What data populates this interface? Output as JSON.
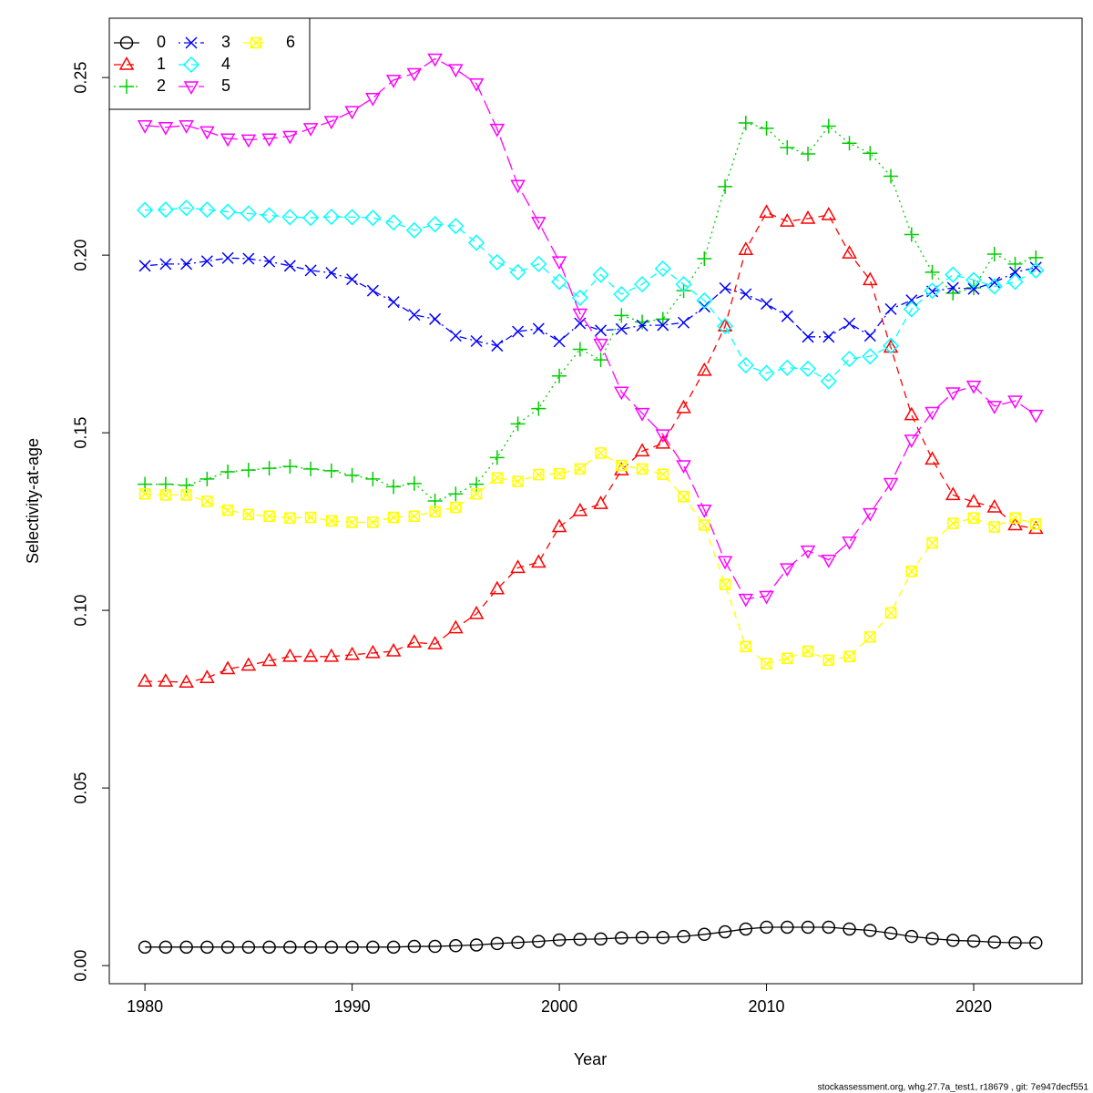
{
  "chart_data": {
    "type": "line",
    "xlabel": "Year",
    "ylabel": "Selectivity-at-age",
    "footer": "stockassessment.org, whg.27.7a_test1, r18679 , git: 7e947decf551",
    "x": [
      1980,
      1981,
      1982,
      1983,
      1984,
      1985,
      1986,
      1987,
      1988,
      1989,
      1990,
      1991,
      1992,
      1993,
      1994,
      1995,
      1996,
      1997,
      1998,
      1999,
      2000,
      2001,
      2002,
      2003,
      2004,
      2005,
      2006,
      2007,
      2008,
      2009,
      2010,
      2011,
      2012,
      2013,
      2014,
      2015,
      2016,
      2017,
      2018,
      2019,
      2020,
      2021,
      2022,
      2023
    ],
    "xlim": [
      1978.28,
      2025.23
    ],
    "ylim": [
      -0.0051,
      0.2667
    ],
    "xticks": [
      1980,
      1990,
      2000,
      2010,
      2020
    ],
    "yticks": [
      {
        "value": 0,
        "label": "0.00"
      },
      0.05,
      {
        "value": 0.1,
        "label": "0.10"
      },
      0.15,
      {
        "value": 0.2,
        "label": "0.20"
      },
      0.25
    ],
    "legend": "top-left",
    "series": [
      {
        "name": "0",
        "color": "#000000",
        "marker": "circle",
        "linestyle": "solid",
        "values": [
          0.0052,
          0.0052,
          0.0052,
          0.0052,
          0.0052,
          0.0052,
          0.0052,
          0.0052,
          0.0052,
          0.0052,
          0.0052,
          0.0052,
          0.0052,
          0.0054,
          0.0054,
          0.0056,
          0.0058,
          0.0062,
          0.0065,
          0.0068,
          0.0072,
          0.0074,
          0.0075,
          0.0078,
          0.0079,
          0.0079,
          0.0082,
          0.0088,
          0.0095,
          0.0103,
          0.0108,
          0.0108,
          0.0108,
          0.0108,
          0.0103,
          0.0099,
          0.0091,
          0.0082,
          0.0076,
          0.0071,
          0.0069,
          0.0066,
          0.0064,
          0.0064
        ]
      },
      {
        "name": "1",
        "color": "#ff0000",
        "marker": "triangle",
        "linestyle": "dashed",
        "values": [
          0.08,
          0.08,
          0.0797,
          0.081,
          0.0835,
          0.0845,
          0.0858,
          0.087,
          0.087,
          0.087,
          0.0875,
          0.088,
          0.0885,
          0.091,
          0.0905,
          0.095,
          0.099,
          0.106,
          0.112,
          0.1135,
          0.1235,
          0.128,
          0.13,
          0.1395,
          0.1448,
          0.147,
          0.157,
          0.1675,
          0.18,
          0.2015,
          0.212,
          0.2095,
          0.2103,
          0.2113,
          0.2005,
          0.193,
          0.174,
          0.155,
          0.1425,
          0.1325,
          0.1305,
          0.129,
          0.124,
          0.123
        ]
      },
      {
        "name": "2",
        "color": "#00cd00",
        "marker": "plus",
        "linestyle": "dotted",
        "values": [
          0.1355,
          0.1355,
          0.1352,
          0.137,
          0.139,
          0.1395,
          0.14,
          0.1405,
          0.1398,
          0.1393,
          0.138,
          0.137,
          0.1348,
          0.1357,
          0.1308,
          0.1328,
          0.1355,
          0.143,
          0.1525,
          0.1568,
          0.166,
          0.1735,
          0.1705,
          0.183,
          0.1812,
          0.182,
          0.19,
          0.199,
          0.2193,
          0.2372,
          0.2357,
          0.2303,
          0.2285,
          0.2363,
          0.2315,
          0.2287,
          0.2222,
          0.2058,
          0.1952,
          0.1893,
          0.1908,
          0.2003,
          0.1975,
          0.1993
        ]
      },
      {
        "name": "3",
        "color": "#0000ff",
        "marker": "cross",
        "linestyle": "dotdash",
        "values": [
          0.197,
          0.1975,
          0.1975,
          0.1983,
          0.1992,
          0.199,
          0.1982,
          0.197,
          0.1957,
          0.195,
          0.1932,
          0.19,
          0.1868,
          0.1832,
          0.182,
          0.1773,
          0.1758,
          0.1745,
          0.1785,
          0.1793,
          0.1757,
          0.1808,
          0.1788,
          0.1792,
          0.1802,
          0.1803,
          0.181,
          0.1855,
          0.1907,
          0.189,
          0.1863,
          0.1828,
          0.177,
          0.177,
          0.1808,
          0.1773,
          0.1848,
          0.1873,
          0.1898,
          0.1908,
          0.1905,
          0.1923,
          0.1952,
          0.1965
        ]
      },
      {
        "name": "4",
        "color": "#00ffff",
        "marker": "diamond",
        "linestyle": "dashed",
        "values": [
          0.2127,
          0.2128,
          0.2133,
          0.2128,
          0.2122,
          0.2117,
          0.2112,
          0.2107,
          0.2105,
          0.2108,
          0.2107,
          0.2105,
          0.2092,
          0.207,
          0.2087,
          0.2082,
          0.2035,
          0.198,
          0.1952,
          0.1975,
          0.1925,
          0.188,
          0.1945,
          0.189,
          0.1918,
          0.1962,
          0.1918,
          0.1872,
          0.18,
          0.169,
          0.1668,
          0.1683,
          0.168,
          0.1645,
          0.1708,
          0.1715,
          0.1745,
          0.1848,
          0.19,
          0.1945,
          0.193,
          0.1912,
          0.1925,
          0.1957
        ]
      },
      {
        "name": "5",
        "color": "#ff00ff",
        "marker": "triangle-down",
        "linestyle": "longdash",
        "values": [
          0.2365,
          0.236,
          0.2365,
          0.2348,
          0.2328,
          0.2325,
          0.2328,
          0.2335,
          0.2357,
          0.2377,
          0.2405,
          0.2442,
          0.2493,
          0.2512,
          0.2553,
          0.2523,
          0.2483,
          0.2355,
          0.2197,
          0.2093,
          0.1982,
          0.1835,
          0.175,
          0.1615,
          0.1555,
          0.1495,
          0.1408,
          0.1283,
          0.1138,
          0.1032,
          0.104,
          0.1118,
          0.1168,
          0.1142,
          0.1193,
          0.1273,
          0.1358,
          0.148,
          0.1558,
          0.1613,
          0.1632,
          0.1575,
          0.159,
          0.155
        ]
      },
      {
        "name": "6",
        "color": "#ffff00",
        "marker": "square-x",
        "linestyle": "dashed",
        "values": [
          0.1328,
          0.1325,
          0.1325,
          0.1307,
          0.1282,
          0.127,
          0.1265,
          0.126,
          0.1262,
          0.1252,
          0.1248,
          0.1248,
          0.1262,
          0.1265,
          0.1278,
          0.129,
          0.1328,
          0.1373,
          0.1363,
          0.1382,
          0.1385,
          0.1398,
          0.1443,
          0.1408,
          0.1398,
          0.1383,
          0.132,
          0.124,
          0.1073,
          0.0898,
          0.085,
          0.0865,
          0.0885,
          0.086,
          0.087,
          0.0925,
          0.0993,
          0.111,
          0.119,
          0.1245,
          0.126,
          0.1235,
          0.126,
          0.1243
        ]
      }
    ]
  }
}
